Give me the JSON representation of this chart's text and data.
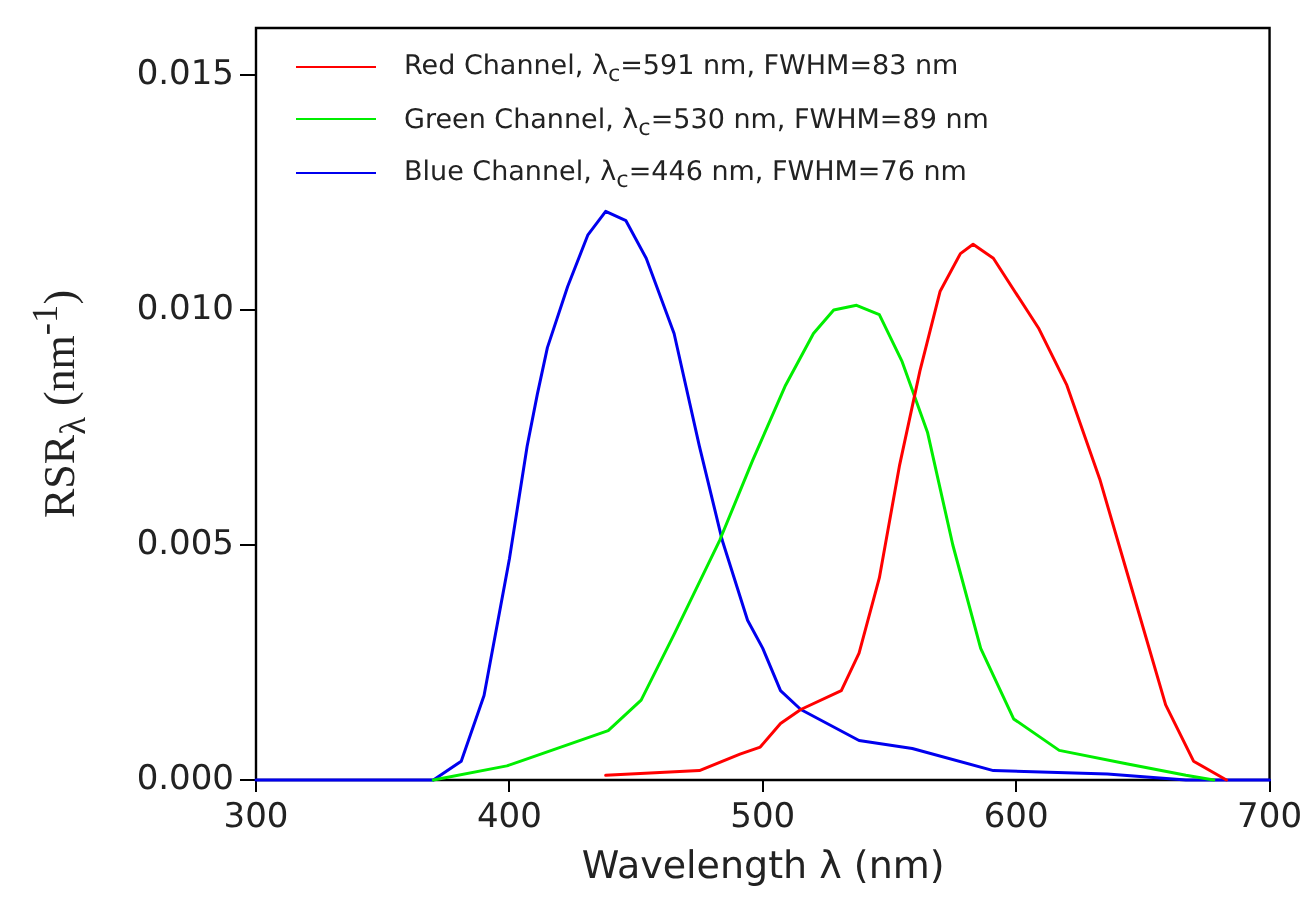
{
  "chart_data": {
    "type": "line",
    "xlabel": "Wavelength λ (nm)",
    "ylabel": "RSR$_{λ}$ (nm$^{-1}$)",
    "xlim": [
      300,
      700
    ],
    "xticks": [
      300,
      400,
      500,
      600,
      700
    ],
    "ylim": [
      0,
      0.016
    ],
    "yticks": [
      {
        "value": 0,
        "label": "0.000"
      },
      {
        "value": 0.005,
        "label": "0.005"
      },
      {
        "value": 0.01,
        "label": "0.010"
      },
      {
        "value": 0.015,
        "label": "0.015"
      }
    ],
    "grid": false,
    "legend": "top left",
    "marker": "none",
    "line_style": "solid",
    "series": [
      {
        "name": "Red Channel, λ$_{c}$=591 nm, FWHM=83 nm",
        "color": "#ff0000",
        "x": [
          438,
          475,
          491,
          499,
          507,
          515,
          531,
          538,
          546,
          554,
          562,
          570,
          578,
          583,
          591,
          609,
          620,
          633,
          646,
          659,
          670,
          683
        ],
        "values": [
          0.0001,
          0.0002,
          0.00055,
          0.0007,
          0.0012,
          0.0015,
          0.0019,
          0.0027,
          0.0043,
          0.0067,
          0.0087,
          0.0104,
          0.0112,
          0.0114,
          0.0111,
          0.0096,
          0.0084,
          0.0064,
          0.004,
          0.0016,
          0.0004,
          0
        ]
      },
      {
        "name": "Green Channel, λ$_{c}$=530 nm, FWHM=89 nm",
        "color": "#00ee00",
        "x": [
          370,
          399,
          439,
          452,
          465,
          483,
          496,
          509,
          520,
          528,
          537,
          546,
          555,
          565,
          575,
          586,
          599,
          617,
          644,
          667,
          678
        ],
        "values": [
          0,
          0.0003,
          0.00105,
          0.0017,
          0.0031,
          0.0051,
          0.0068,
          0.0084,
          0.0095,
          0.01,
          0.0101,
          0.0099,
          0.0089,
          0.0074,
          0.005,
          0.0028,
          0.0013,
          0.00063,
          0.00034,
          0.0001,
          0
        ]
      },
      {
        "name": "Blue Channel, λ$_{c}$=446 nm, FWHM=76 nm",
        "color": "#0000ee",
        "x": [
          300,
          370,
          381,
          390,
          400,
          407,
          411,
          415,
          423,
          431,
          438,
          446,
          454,
          465,
          475,
          484,
          494,
          500,
          507,
          515,
          538,
          559,
          591,
          636,
          667,
          700
        ],
        "values": [
          0,
          0,
          0.0004,
          0.0018,
          0.0047,
          0.0071,
          0.0082,
          0.0092,
          0.0105,
          0.0116,
          0.0121,
          0.0119,
          0.0111,
          0.0095,
          0.0071,
          0.0051,
          0.0034,
          0.0028,
          0.0019,
          0.0015,
          0.00084,
          0.00067,
          0.0002,
          0.00013,
          0,
          0
        ]
      }
    ]
  }
}
